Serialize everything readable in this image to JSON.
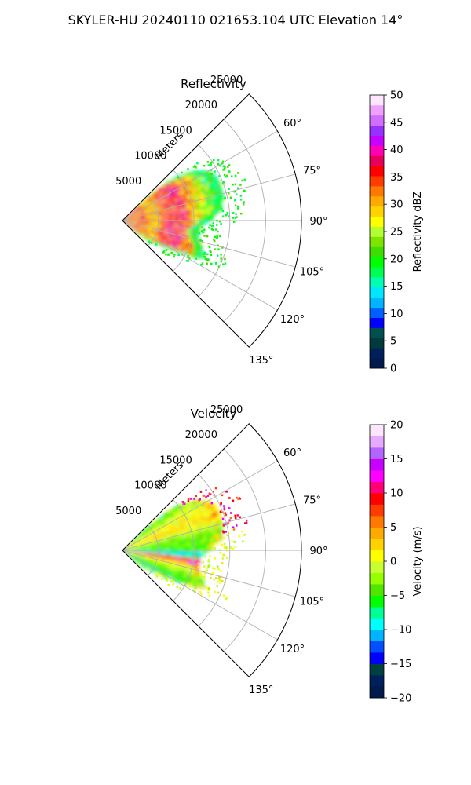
{
  "figure_title": "SKYLER-HU  20240110  021653.104 UTC Elevation 14°",
  "colors": {
    "reflectivity_scale": [
      "#001a4d",
      "#00205c",
      "#003a3a",
      "#005050",
      "#0000ff",
      "#0060ff",
      "#00b4ff",
      "#00e6ff",
      "#00ffb4",
      "#00ff50",
      "#00ff00",
      "#40dd00",
      "#7ce600",
      "#b4ff32",
      "#ffff00",
      "#ffd200",
      "#ffaa00",
      "#ff7800",
      "#ff3c00",
      "#ff0000",
      "#e6005a",
      "#ff00b4",
      "#c800ff",
      "#9632ff",
      "#d26eff",
      "#f0a0ff",
      "#ffe6ff"
    ],
    "velocity_scale": [
      "#001a4d",
      "#00205c",
      "#004040",
      "#0000ff",
      "#0050ff",
      "#00b4ff",
      "#00ffff",
      "#00ff96",
      "#00ff00",
      "#50e600",
      "#96ff00",
      "#c8ff32",
      "#ffff00",
      "#ffd200",
      "#ffaa00",
      "#ff7800",
      "#ff3c00",
      "#ff0000",
      "#ff0078",
      "#ff00ff",
      "#c800ff",
      "#b464ff",
      "#e6aaff",
      "#ffe6ff"
    ],
    "grid": "#b0b0b0"
  },
  "chart_data": [
    {
      "type": "heatmap",
      "title": "Reflectivity",
      "radial_axis_label": "Meters",
      "radial_ticks": [
        5000,
        10000,
        15000,
        20000,
        25000
      ],
      "radial_tick_labels": [
        "5000",
        "10000",
        "15000",
        "20000",
        "25000"
      ],
      "angular_ticks": [
        60,
        75,
        90,
        105,
        120,
        135
      ],
      "angular_tick_labels": [
        "60°",
        "75°",
        "90°",
        "105°",
        "120°",
        "135°"
      ],
      "azimuth_range_deg": [
        45,
        135
      ],
      "range_max_m": 25000,
      "grid": true,
      "colorbar": {
        "label": "Reflectivity dBZ",
        "min": 0,
        "max": 50,
        "ticks": [
          0,
          5,
          10,
          15,
          20,
          25,
          30,
          35,
          40,
          45,
          50
        ],
        "tick_labels": [
          "0",
          "5",
          "10",
          "15",
          "20",
          "25",
          "30",
          "35",
          "40",
          "45",
          "50"
        ]
      },
      "echo_extent_m_by_azimuth": [
        [
          46,
          3000
        ],
        [
          50,
          9000
        ],
        [
          55,
          12000
        ],
        [
          60,
          13500
        ],
        [
          65,
          14500
        ],
        [
          70,
          14500
        ],
        [
          75,
          14500
        ],
        [
          80,
          14000
        ],
        [
          85,
          13500
        ],
        [
          90,
          12000
        ],
        [
          95,
          10800
        ],
        [
          100,
          10500
        ],
        [
          105,
          11000
        ],
        [
          110,
          11800
        ],
        [
          115,
          12500
        ],
        [
          120,
          8500
        ],
        [
          125,
          5500
        ],
        [
          130,
          3500
        ],
        [
          134,
          1500
        ]
      ],
      "approx_values_by_range_m": [
        [
          0,
          32
        ],
        [
          2000,
          34
        ],
        [
          4000,
          30
        ],
        [
          6000,
          35
        ],
        [
          8000,
          37
        ],
        [
          10000,
          30
        ],
        [
          12000,
          22
        ],
        [
          14000,
          18
        ]
      ]
    },
    {
      "type": "heatmap",
      "title": "Velocity",
      "radial_axis_label": "Meters",
      "radial_ticks": [
        5000,
        10000,
        15000,
        20000,
        25000
      ],
      "radial_tick_labels": [
        "5000",
        "10000",
        "15000",
        "20000",
        "25000"
      ],
      "angular_ticks": [
        60,
        75,
        90,
        105,
        120,
        135
      ],
      "angular_tick_labels": [
        "60°",
        "75°",
        "90°",
        "105°",
        "120°",
        "135°"
      ],
      "azimuth_range_deg": [
        45,
        135
      ],
      "range_max_m": 25000,
      "grid": true,
      "colorbar": {
        "label": "Velocity (m/s)",
        "min": -20,
        "max": 20,
        "ticks": [
          -20,
          -15,
          -10,
          -5,
          0,
          5,
          10,
          15,
          20
        ],
        "tick_labels": [
          "−20",
          "−15",
          "−10",
          "−5",
          "0",
          "5",
          "10",
          "15",
          "20"
        ]
      },
      "echo_extent_m_by_azimuth": [
        [
          46,
          3000
        ],
        [
          50,
          9000
        ],
        [
          55,
          12000
        ],
        [
          60,
          13500
        ],
        [
          65,
          14500
        ],
        [
          70,
          14500
        ],
        [
          75,
          14500
        ],
        [
          80,
          14000
        ],
        [
          85,
          13500
        ],
        [
          90,
          12000
        ],
        [
          95,
          10800
        ],
        [
          100,
          10500
        ],
        [
          105,
          11000
        ],
        [
          110,
          11800
        ],
        [
          115,
          12500
        ],
        [
          120,
          8500
        ],
        [
          125,
          5500
        ],
        [
          130,
          3500
        ],
        [
          134,
          1500
        ]
      ],
      "approx_values_by_azimuth_deg": [
        [
          50,
          -5
        ],
        [
          60,
          0
        ],
        [
          70,
          2
        ],
        [
          80,
          -4
        ],
        [
          90,
          -5
        ],
        [
          95,
          -12
        ],
        [
          98,
          12
        ],
        [
          102,
          3
        ],
        [
          110,
          -3
        ],
        [
          120,
          -6
        ]
      ]
    }
  ]
}
